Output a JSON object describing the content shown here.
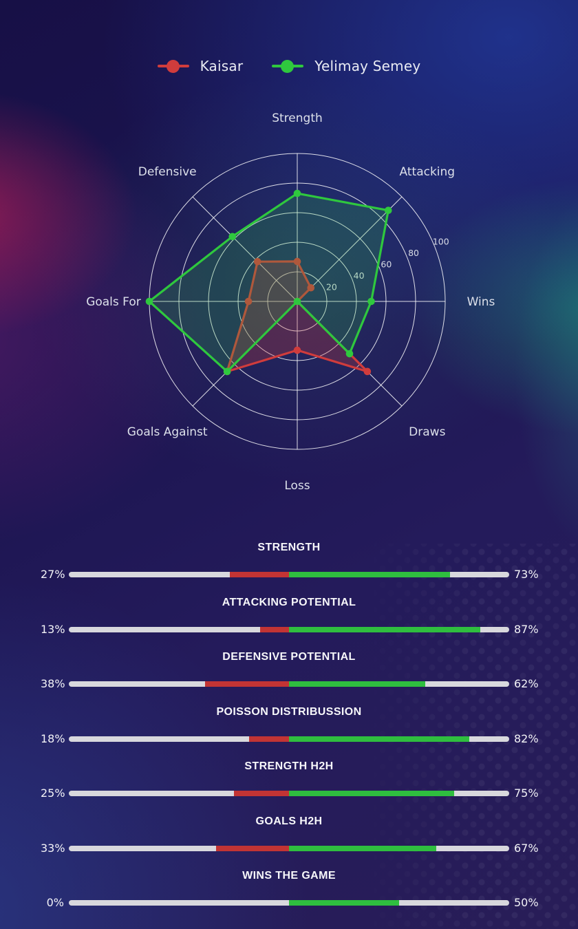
{
  "legend": {
    "items": [
      {
        "label": "Kaisar",
        "color": "#d03c3c"
      },
      {
        "label": "Yelimay Semey",
        "color": "#2fc83e"
      }
    ]
  },
  "chart_data": {
    "type": "radar",
    "axes": [
      "Strength",
      "Attacking",
      "Wins",
      "Draws",
      "Loss",
      "Goals Against",
      "Goals For",
      "Defensive"
    ],
    "ticks": [
      20,
      40,
      60,
      80,
      100
    ],
    "rmax": 100,
    "grid": "circular",
    "legend_position": "top-center",
    "series": [
      {
        "name": "Kaisar",
        "color": "#d03c3c",
        "fill": "rgba(205,58,58,0.28)",
        "values": [
          27,
          13,
          0,
          67,
          33,
          67,
          33,
          38
        ]
      },
      {
        "name": "Yelimay Semey",
        "color": "#2fc83e",
        "fill": "rgba(47,200,62,0.20)",
        "values": [
          73,
          87,
          50,
          50,
          0,
          67,
          100,
          62
        ]
      }
    ]
  },
  "comparison_bars": {
    "track_color": "#d8d8dd",
    "left_color": "#c23434",
    "right_color": "#2fbe3f",
    "rows": [
      {
        "title": "STRENGTH",
        "left_label": "27%",
        "right_label": "73%",
        "left_value": 27,
        "right_value": 73
      },
      {
        "title": "ATTACKING POTENTIAL",
        "left_label": "13%",
        "right_label": "87%",
        "left_value": 13,
        "right_value": 87
      },
      {
        "title": "DEFENSIVE POTENTIAL",
        "left_label": "38%",
        "right_label": "62%",
        "left_value": 38,
        "right_value": 62
      },
      {
        "title": "POISSON DISTRIBUSSION",
        "left_label": "18%",
        "right_label": "82%",
        "left_value": 18,
        "right_value": 82
      },
      {
        "title": "STRENGTH H2H",
        "left_label": "25%",
        "right_label": "75%",
        "left_value": 25,
        "right_value": 75
      },
      {
        "title": "GOALS H2H",
        "left_label": "33%",
        "right_label": "67%",
        "left_value": 33,
        "right_value": 67
      },
      {
        "title": "WINS THE GAME",
        "left_label": "0%",
        "right_label": "50%",
        "left_value": 0,
        "right_value": 50
      }
    ]
  }
}
